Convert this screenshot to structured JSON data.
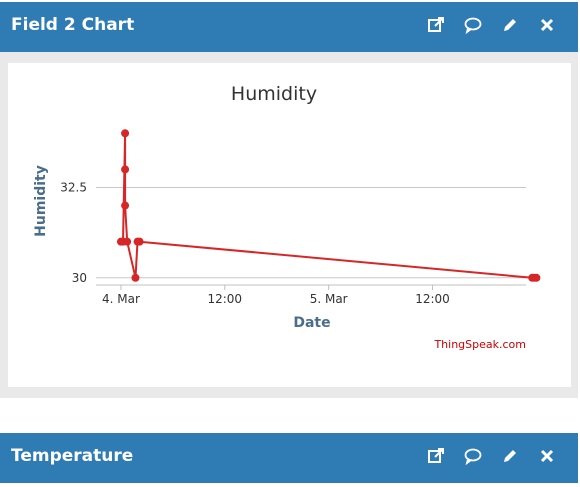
{
  "panels": [
    {
      "title": "Field 2 Chart"
    },
    {
      "title": "Temperature"
    }
  ],
  "icons": [
    "external-link-icon",
    "comment-icon",
    "pencil-icon",
    "close-icon"
  ],
  "colors": {
    "header_bg": "#2e7cb3",
    "series_line": "#d62728",
    "axis_text": "#4a6d8c",
    "credit": "#cc0000"
  },
  "chart_data": {
    "type": "line",
    "title": "Humidity",
    "xlabel": "Date",
    "ylabel": "Humidity",
    "x_ticks": [
      "4. Mar",
      "12:00",
      "5. Mar",
      "12:00"
    ],
    "y_ticks": [
      "30",
      "32.5"
    ],
    "x_range": [
      -0.12,
      1.95
    ],
    "ylim": [
      29.8,
      34.7
    ],
    "grid": true,
    "legend": "none",
    "credit": "ThingSpeak.com",
    "series": [
      {
        "points": [
          {
            "x": 0.0,
            "y": 31.0
          },
          {
            "x": 0.01,
            "y": 31.0
          },
          {
            "x": 0.02,
            "y": 34.0
          },
          {
            "x": 0.02,
            "y": 33.0
          },
          {
            "x": 0.02,
            "y": 32.0
          },
          {
            "x": 0.03,
            "y": 31.0
          },
          {
            "x": 0.07,
            "y": 30.0
          },
          {
            "x": 0.08,
            "y": 31.0
          },
          {
            "x": 0.09,
            "y": 31.0
          },
          {
            "x": 1.98,
            "y": 30.0
          },
          {
            "x": 1.99,
            "y": 30.0
          },
          {
            "x": 2.0,
            "y": 30.0
          }
        ]
      }
    ]
  }
}
